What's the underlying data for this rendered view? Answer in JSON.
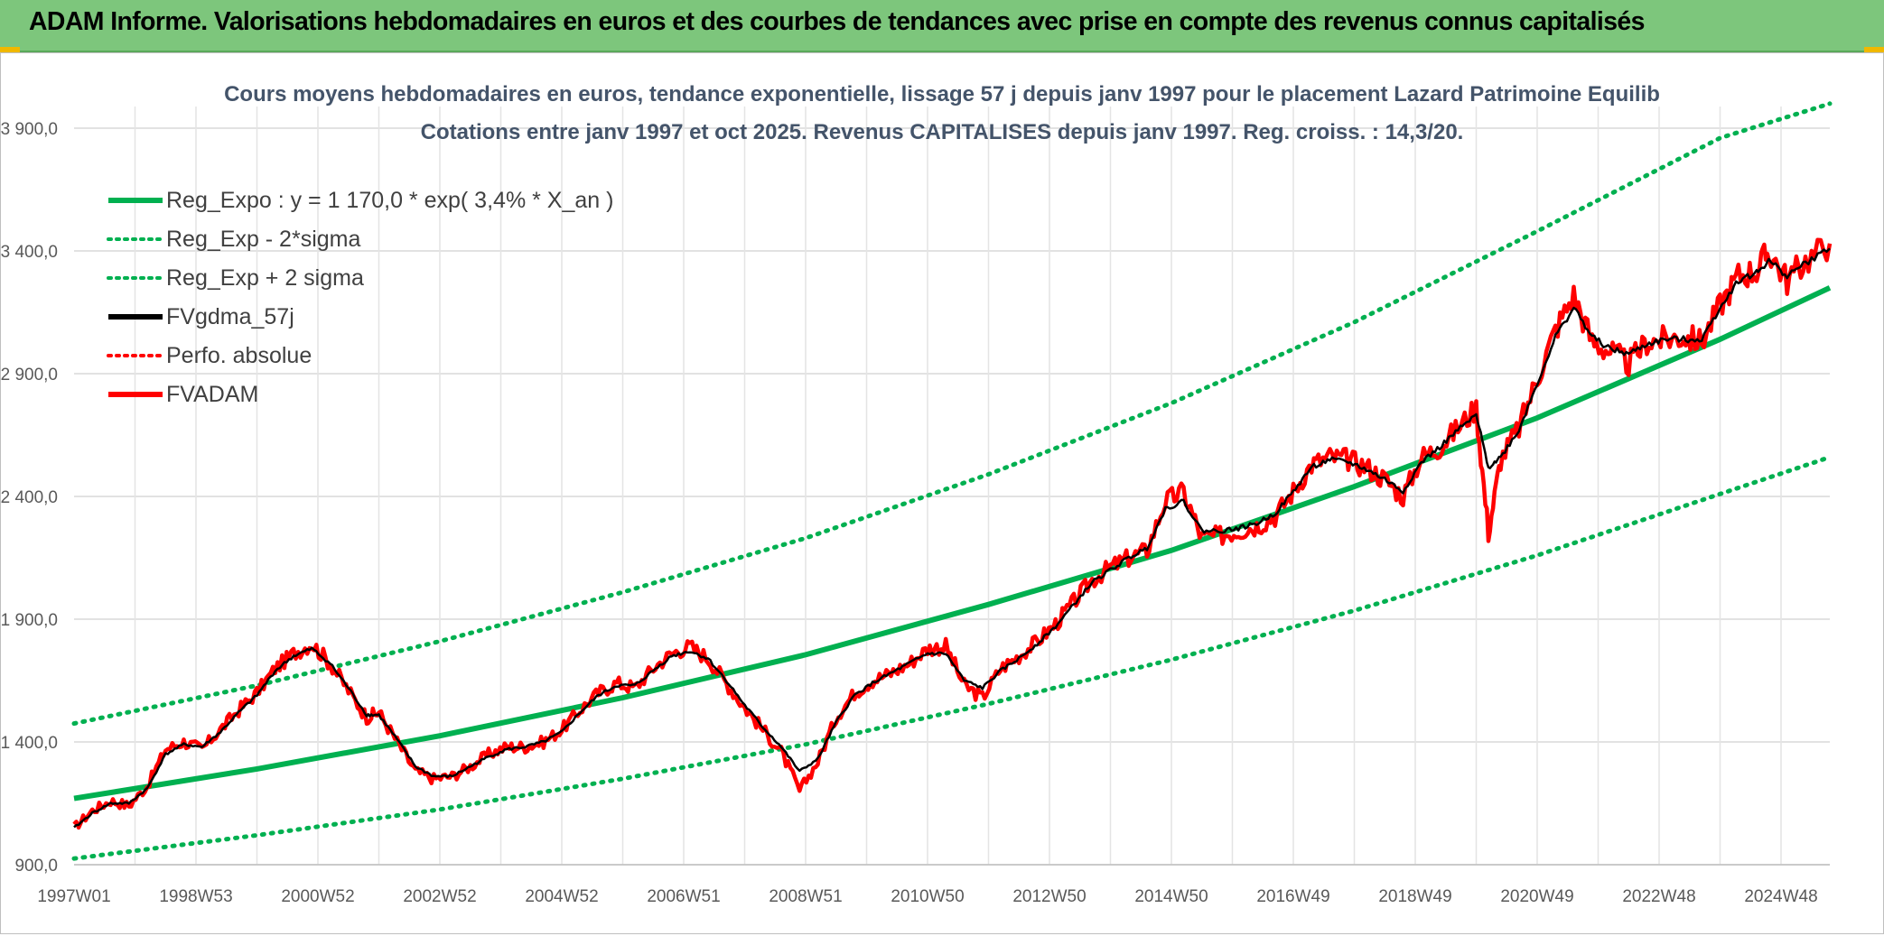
{
  "header": {
    "title": "ADAM Informe. Valorisations hebdomadaires en euros et des courbes de tendances avec prise en compte des revenus connus capitalisés"
  },
  "colors": {
    "header_bg": "#7dc67c",
    "reg_expo": "#00b050",
    "fvgdma": "#000000",
    "fvadam": "#ff0000",
    "perfo": "#ff0000",
    "grid": "#d9d9d9"
  },
  "chart_data": {
    "type": "line",
    "title": "Cours moyens hebdomadaires en euros, tendance exponentielle, lissage 57 j depuis janv 1997 pour le placement Lazard Patrimoine Equilib",
    "subtitle": "Cotations entre janv 1997 et oct 2025. Revenus CAPITALISES depuis janv 1997. Reg. croiss. : 14,3/20.",
    "xlabel": "",
    "ylabel": "",
    "ylim": [
      900,
      4000
    ],
    "yticks": [
      "900,0",
      "1 400,0",
      "1 900,0",
      "2 400,0",
      "2 900,0",
      "3 400,0",
      "3 900,0"
    ],
    "ytick_values": [
      900,
      1400,
      1900,
      2400,
      2900,
      3400,
      3900
    ],
    "xlim": [
      1997.0,
      2025.8
    ],
    "xticks": [
      "1997W01",
      "1998W53",
      "2000W52",
      "2002W52",
      "2004W52",
      "2006W51",
      "2008W51",
      "2010W50",
      "2012W50",
      "2014W50",
      "2016W49",
      "2018W49",
      "2020W49",
      "2022W48",
      "2024W48"
    ],
    "xtick_values": [
      1997.0,
      1999.0,
      2001.0,
      2003.0,
      2005.0,
      2007.0,
      2009.0,
      2011.0,
      2013.0,
      2015.0,
      2017.0,
      2019.0,
      2021.0,
      2023.0,
      2025.0
    ],
    "grid": true,
    "legend_position": "top-left",
    "legend": [
      {
        "label": "Reg_Expo : y = 1 170,0 * exp( 3,4% *  X_an )",
        "style": "solid",
        "color": "#00b050"
      },
      {
        "label": "Reg_Exp - 2*sigma",
        "style": "dotted",
        "color": "#00b050"
      },
      {
        "label": "Reg_Exp + 2 sigma",
        "style": "dotted",
        "color": "#00b050"
      },
      {
        "label": "FVgdma_57j",
        "style": "solid",
        "color": "#000000"
      },
      {
        "label": "Perfo. absolue",
        "style": "dotted",
        "color": "#ff0000"
      },
      {
        "label": "FVADAM",
        "style": "solid",
        "color": "#ff0000"
      }
    ],
    "series": [
      {
        "name": "Reg_Expo : y = 1 170,0 * exp( 3,4% *  X_an )",
        "x": [
          1997.0,
          2000.0,
          2003.0,
          2006.0,
          2009.0,
          2012.0,
          2015.0,
          2018.0,
          2021.0,
          2024.0,
          2025.8
        ],
        "values": [
          1170,
          1290,
          1425,
          1580,
          1755,
          1960,
          2180,
          2440,
          2720,
          3040,
          3250
        ]
      },
      {
        "name": "Reg_Exp - 2*sigma",
        "x": [
          1997.0,
          2000.0,
          2003.0,
          2006.0,
          2009.0,
          2012.0,
          2015.0,
          2018.0,
          2021.0,
          2024.0,
          2025.8
        ],
        "values": [
          925,
          1020,
          1125,
          1250,
          1390,
          1555,
          1735,
          1935,
          2160,
          2410,
          2560
        ]
      },
      {
        "name": "Reg_Exp + 2 sigma",
        "x": [
          1997.0,
          2000.0,
          2003.0,
          2006.0,
          2009.0,
          2012.0,
          2015.0,
          2018.0,
          2021.0,
          2024.0,
          2025.8
        ],
        "values": [
          1475,
          1630,
          1810,
          2010,
          2230,
          2490,
          2780,
          3110,
          3480,
          3860,
          4000
        ]
      },
      {
        "name": "FVADAM",
        "x": [
          1997.0,
          1997.3,
          1997.6,
          1997.9,
          1998.2,
          1998.5,
          1998.8,
          1999.1,
          1999.4,
          1999.7,
          2000.0,
          2000.3,
          2000.6,
          2000.9,
          2001.2,
          2001.5,
          2001.8,
          2002.0,
          2002.3,
          2002.6,
          2002.9,
          2003.2,
          2003.5,
          2003.8,
          2004.1,
          2004.4,
          2004.7,
          2005.0,
          2005.3,
          2005.6,
          2005.9,
          2006.2,
          2006.5,
          2006.8,
          2007.1,
          2007.4,
          2007.7,
          2008.0,
          2008.3,
          2008.6,
          2008.9,
          2009.2,
          2009.5,
          2009.8,
          2010.1,
          2010.4,
          2010.7,
          2011.0,
          2011.3,
          2011.6,
          2011.9,
          2012.2,
          2012.5,
          2012.8,
          2013.1,
          2013.4,
          2013.7,
          2014.0,
          2014.3,
          2014.6,
          2014.9,
          2015.2,
          2015.5,
          2015.8,
          2016.1,
          2016.4,
          2016.7,
          2017.0,
          2017.3,
          2017.6,
          2017.9,
          2018.2,
          2018.5,
          2018.8,
          2019.1,
          2019.4,
          2019.7,
          2020.0,
          2020.2,
          2020.4,
          2020.7,
          2021.0,
          2021.3,
          2021.6,
          2021.9,
          2022.2,
          2022.5,
          2022.8,
          2023.1,
          2023.4,
          2023.7,
          2024.0,
          2024.3,
          2024.6,
          2024.8,
          2025.1,
          2025.4,
          2025.8
        ],
        "values": [
          1050,
          1120,
          1160,
          1140,
          1220,
          1370,
          1400,
          1370,
          1450,
          1530,
          1600,
          1700,
          1760,
          1800,
          1720,
          1610,
          1500,
          1520,
          1400,
          1280,
          1250,
          1260,
          1300,
          1350,
          1380,
          1380,
          1400,
          1450,
          1530,
          1600,
          1640,
          1620,
          1700,
          1760,
          1790,
          1740,
          1640,
          1540,
          1450,
          1360,
          1200,
          1320,
          1500,
          1600,
          1650,
          1680,
          1720,
          1780,
          1790,
          1630,
          1580,
          1700,
          1750,
          1810,
          1880,
          1970,
          2060,
          2110,
          2150,
          2180,
          2380,
          2420,
          2230,
          2240,
          2260,
          2280,
          2320,
          2420,
          2530,
          2560,
          2550,
          2520,
          2470,
          2400,
          2560,
          2600,
          2680,
          2760,
          2250,
          2550,
          2680,
          2880,
          3080,
          3220,
          3030,
          2990,
          2940,
          3030,
          3040,
          3050,
          3030,
          3180,
          3300,
          3320,
          3400,
          3280,
          3360,
          3430
        ]
      },
      {
        "name": "FVgdma_57j",
        "x": [
          1997.0,
          1997.3,
          1997.6,
          1997.9,
          1998.2,
          1998.5,
          1998.8,
          1999.1,
          1999.4,
          1999.7,
          2000.0,
          2000.3,
          2000.6,
          2000.9,
          2001.2,
          2001.5,
          2001.8,
          2002.0,
          2002.3,
          2002.6,
          2002.9,
          2003.2,
          2003.5,
          2003.8,
          2004.1,
          2004.4,
          2004.7,
          2005.0,
          2005.3,
          2005.6,
          2005.9,
          2006.2,
          2006.5,
          2006.8,
          2007.1,
          2007.4,
          2007.7,
          2008.0,
          2008.3,
          2008.6,
          2008.9,
          2009.2,
          2009.5,
          2009.8,
          2010.1,
          2010.4,
          2010.7,
          2011.0,
          2011.3,
          2011.6,
          2011.9,
          2012.2,
          2012.5,
          2012.8,
          2013.1,
          2013.4,
          2013.7,
          2014.0,
          2014.3,
          2014.6,
          2014.9,
          2015.2,
          2015.5,
          2015.8,
          2016.1,
          2016.4,
          2016.7,
          2017.0,
          2017.3,
          2017.6,
          2017.9,
          2018.2,
          2018.5,
          2018.8,
          2019.1,
          2019.4,
          2019.7,
          2020.0,
          2020.2,
          2020.4,
          2020.7,
          2021.0,
          2021.3,
          2021.6,
          2021.9,
          2022.2,
          2022.5,
          2022.8,
          2023.1,
          2023.4,
          2023.7,
          2024.0,
          2024.3,
          2024.6,
          2024.8,
          2025.1,
          2025.4,
          2025.8
        ],
        "values": [
          1050,
          1110,
          1150,
          1150,
          1210,
          1350,
          1390,
          1380,
          1440,
          1520,
          1590,
          1690,
          1750,
          1780,
          1720,
          1620,
          1510,
          1510,
          1410,
          1300,
          1260,
          1260,
          1300,
          1340,
          1370,
          1380,
          1400,
          1440,
          1520,
          1590,
          1630,
          1630,
          1690,
          1750,
          1770,
          1740,
          1650,
          1550,
          1460,
          1380,
          1280,
          1330,
          1480,
          1590,
          1640,
          1680,
          1720,
          1760,
          1760,
          1650,
          1620,
          1690,
          1740,
          1800,
          1870,
          1960,
          2050,
          2100,
          2150,
          2190,
          2350,
          2380,
          2260,
          2260,
          2270,
          2290,
          2330,
          2420,
          2520,
          2550,
          2540,
          2510,
          2470,
          2420,
          2540,
          2600,
          2670,
          2730,
          2520,
          2560,
          2670,
          2860,
          3050,
          3170,
          3050,
          3000,
          2980,
          3020,
          3040,
          3040,
          3040,
          3170,
          3280,
          3310,
          3360,
          3300,
          3350,
          3410
        ]
      }
    ]
  }
}
